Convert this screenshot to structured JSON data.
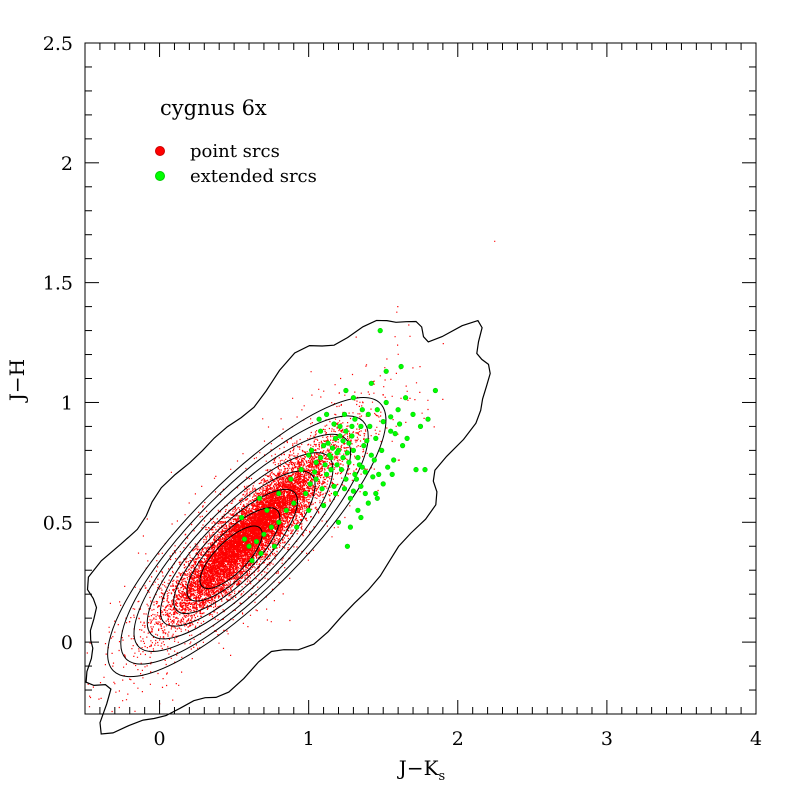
{
  "chart_data": {
    "type": "scatter",
    "title": "cygnus 6x",
    "xlabel": "J−K",
    "xlabel_sub": "s",
    "ylabel": "J−H",
    "xlim": [
      -0.5,
      4
    ],
    "ylim": [
      -0.3,
      2.5
    ],
    "xticks": [
      0,
      1,
      2,
      3,
      4
    ],
    "xtick_labels": [
      "0",
      "1",
      "2",
      "3",
      "4"
    ],
    "yticks": [
      0,
      0.5,
      1,
      1.5,
      2,
      2.5
    ],
    "ytick_labels": [
      "0",
      "0.5",
      "1",
      "1.5",
      "2",
      "2.5"
    ],
    "grid": false,
    "legend_position": "top-left",
    "series": [
      {
        "name": "point srcs",
        "color": "#ff0000",
        "marker": "dot",
        "distribution": {
          "count": 12000,
          "mean": [
            0.6,
            0.45
          ],
          "std_along": 0.3,
          "std_across": 0.06,
          "slope_deg": 32
        }
      },
      {
        "name": "extended srcs",
        "color": "#00ff00",
        "marker": "circle",
        "points": [
          [
            1.0,
            0.78
          ],
          [
            1.05,
            0.75
          ],
          [
            1.1,
            0.82
          ],
          [
            1.12,
            0.7
          ],
          [
            1.15,
            0.77
          ],
          [
            1.18,
            0.85
          ],
          [
            1.2,
            0.8
          ],
          [
            1.22,
            0.72
          ],
          [
            1.25,
            0.88
          ],
          [
            1.27,
            0.75
          ],
          [
            1.3,
            0.8
          ],
          [
            1.32,
            0.68
          ],
          [
            1.35,
            0.9
          ],
          [
            1.37,
            0.82
          ],
          [
            1.4,
            0.95
          ],
          [
            1.42,
            0.78
          ],
          [
            1.45,
            0.85
          ],
          [
            1.47,
            0.7
          ],
          [
            1.5,
            0.92
          ],
          [
            1.52,
            1.0
          ],
          [
            1.55,
            0.88
          ],
          [
            1.57,
            0.76
          ],
          [
            1.6,
            0.97
          ],
          [
            1.63,
            0.82
          ],
          [
            1.65,
            1.02
          ],
          [
            1.7,
            0.95
          ],
          [
            1.75,
            0.9
          ],
          [
            1.8,
            0.93
          ],
          [
            1.85,
            1.05
          ],
          [
            1.48,
            1.3
          ],
          [
            1.62,
            1.15
          ],
          [
            1.52,
            1.13
          ],
          [
            1.3,
            1.02
          ],
          [
            1.42,
            1.08
          ],
          [
            1.25,
            1.05
          ],
          [
            1.12,
            0.95
          ],
          [
            1.08,
            0.88
          ],
          [
            1.17,
            0.65
          ],
          [
            1.28,
            0.6
          ],
          [
            1.33,
            0.55
          ],
          [
            1.4,
            0.58
          ],
          [
            1.45,
            0.62
          ],
          [
            1.35,
            0.65
          ],
          [
            1.25,
            0.68
          ],
          [
            1.15,
            0.72
          ],
          [
            1.05,
            0.68
          ],
          [
            0.98,
            0.62
          ],
          [
            0.9,
            0.58
          ],
          [
            0.85,
            0.55
          ],
          [
            0.8,
            0.5
          ],
          [
            0.75,
            0.48
          ],
          [
            0.7,
            0.45
          ],
          [
            0.65,
            0.42
          ],
          [
            0.6,
            0.4
          ],
          [
            0.72,
            0.55
          ],
          [
            0.8,
            0.62
          ],
          [
            0.88,
            0.68
          ],
          [
            0.95,
            0.72
          ],
          [
            1.02,
            0.8
          ],
          [
            1.08,
            0.77
          ],
          [
            1.13,
            0.83
          ],
          [
            1.19,
            0.79
          ],
          [
            1.23,
            0.84
          ],
          [
            1.29,
            0.86
          ],
          [
            1.34,
            0.74
          ],
          [
            1.38,
            0.71
          ],
          [
            1.44,
            0.76
          ],
          [
            1.49,
            0.8
          ],
          [
            1.53,
            0.73
          ],
          [
            1.58,
            0.87
          ],
          [
            1.61,
            0.91
          ],
          [
            1.66,
            0.85
          ],
          [
            1.72,
            0.72
          ],
          [
            1.78,
            0.72
          ],
          [
            1.2,
            0.5
          ],
          [
            1.28,
            0.48
          ],
          [
            1.26,
            0.4
          ],
          [
            1.35,
            0.52
          ],
          [
            1.1,
            0.57
          ],
          [
            1.0,
            0.55
          ],
          [
            0.92,
            0.48
          ],
          [
            0.77,
            0.4
          ],
          [
            0.68,
            0.37
          ],
          [
            0.62,
            0.34
          ],
          [
            0.57,
            0.43
          ],
          [
            0.55,
            0.52
          ],
          [
            0.67,
            0.6
          ],
          [
            1.07,
            0.93
          ],
          [
            1.21,
            0.9
          ],
          [
            1.31,
            0.93
          ],
          [
            1.36,
            0.97
          ],
          [
            1.46,
            0.97
          ],
          [
            1.55,
            0.94
          ],
          [
            1.41,
            0.9
          ],
          [
            1.24,
            0.95
          ],
          [
            1.17,
            0.91
          ],
          [
            1.14,
            0.78
          ],
          [
            1.19,
            0.74
          ],
          [
            1.26,
            0.79
          ],
          [
            1.33,
            0.77
          ],
          [
            1.39,
            0.84
          ],
          [
            1.43,
            0.69
          ],
          [
            1.5,
            0.66
          ],
          [
            1.56,
            0.7
          ],
          [
            1.23,
            0.77
          ],
          [
            1.16,
            0.81
          ],
          [
            1.21,
            0.86
          ],
          [
            1.27,
            0.83
          ],
          [
            1.31,
            0.7
          ],
          [
            1.36,
            0.73
          ],
          [
            1.11,
            0.74
          ],
          [
            1.04,
            0.71
          ],
          [
            1.01,
            0.66
          ],
          [
            1.09,
            0.64
          ],
          [
            1.18,
            0.62
          ],
          [
            1.24,
            0.64
          ],
          [
            1.3,
            0.63
          ],
          [
            1.38,
            0.62
          ],
          [
            1.46,
            0.6
          ],
          [
            1.29,
            0.9
          ]
        ]
      }
    ],
    "contour_levels": 8
  }
}
